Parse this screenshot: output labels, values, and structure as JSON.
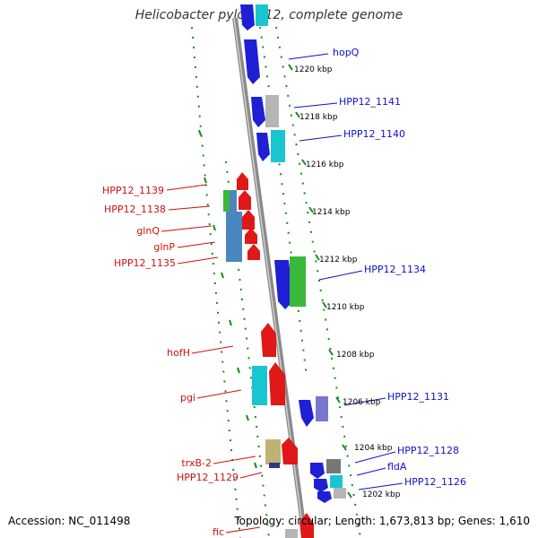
{
  "title": "Helicobacter pylori P12, complete genome",
  "footer": {
    "accession": "Accession: NC_011498",
    "topology": "Topology: circular; Length: 1,673,813 bp; Genes: 1,610"
  },
  "scale_labels": [
    "1220 kbp",
    "1218 kbp",
    "1216 kbp",
    "1214 kbp",
    "1212 kbp",
    "1210 kbp",
    "1208 kbp",
    "1206 kbp",
    "1204 kbp",
    "1202 kbp"
  ],
  "forward_gene_labels": [
    "hopQ",
    "HPP12_1141",
    "HPP12_1140",
    "HPP12_1134",
    "HPP12_1131",
    "HPP12_1128",
    "fldA",
    "HPP12_1126"
  ],
  "reverse_gene_labels": [
    "HPP12_1139",
    "HPP12_1138",
    "glnQ",
    "glnP",
    "HPP12_1135",
    "hofH",
    "pgi",
    "trxB-2",
    "HPP12_1129",
    "fic"
  ],
  "colors": {
    "forward_label": "#1010c8",
    "reverse_label": "#cc1111",
    "backbone": "#8a8a8a",
    "dotted_guide": "#1a8a1a",
    "blue": "#1f1fd6",
    "red": "#e01818",
    "cyan": "#19c6cf",
    "green": "#3ab83a",
    "steelblue": "#4a86c0",
    "grey": "#b5b5b5",
    "olive": "#bdb372"
  }
}
